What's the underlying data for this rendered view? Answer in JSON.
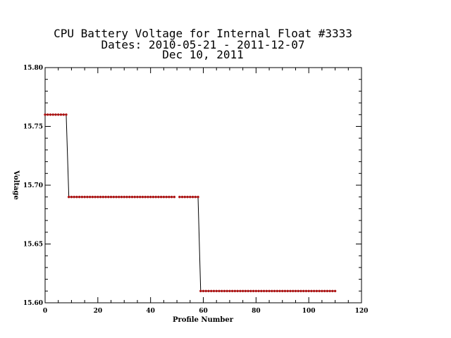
{
  "chart_data": {
    "type": "line",
    "title": "CPU Battery Voltage for Internal Float #3333",
    "subtitle_lines": [
      "Dates:  2010-05-21 -  2011-12-07",
      "Dec 10, 2011"
    ],
    "xlabel": "Profile Number",
    "ylabel": "Voltage",
    "xlim": [
      0,
      120
    ],
    "ylim": [
      15.6,
      15.8
    ],
    "x_ticks": [
      0,
      20,
      40,
      60,
      80,
      100,
      120
    ],
    "y_ticks": [
      15.6,
      15.65,
      15.7,
      15.75,
      15.8
    ],
    "y_tick_labels": [
      "15.60",
      "15.65",
      "15.70",
      "15.75",
      "15.80"
    ],
    "grid": false,
    "colors": {
      "line": "#000000",
      "marker": "#b01010"
    },
    "series": [
      {
        "segments": [
          {
            "x_start": 0,
            "x_end": 8,
            "y": 15.76
          },
          {
            "x_start": 9,
            "x_end": 49,
            "y": 15.69
          },
          {
            "x_start": 51,
            "x_end": 58,
            "y": 15.69
          },
          {
            "x_start": 59,
            "x_end": 110,
            "y": 15.61
          }
        ]
      }
    ]
  }
}
